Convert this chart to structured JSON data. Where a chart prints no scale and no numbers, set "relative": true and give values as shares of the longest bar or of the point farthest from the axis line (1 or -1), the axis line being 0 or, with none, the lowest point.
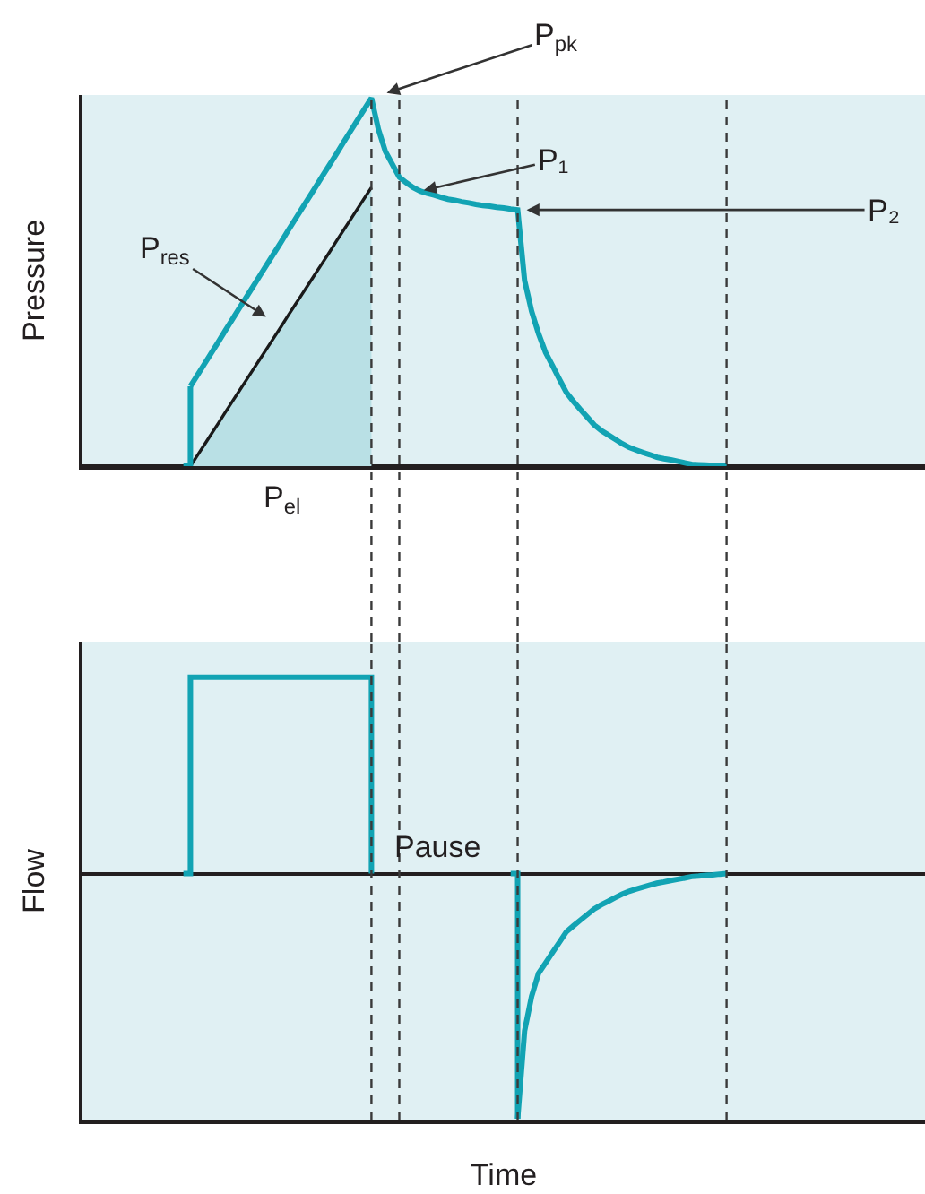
{
  "chart_data": [
    {
      "type": "line",
      "relative": true,
      "ylabel": "Pressure",
      "grid": "x",
      "marker": "none",
      "categories": [
        null,
        null,
        null,
        null,
        null,
        null,
        null,
        null,
        null,
        null,
        null,
        null,
        null,
        null,
        null,
        null,
        null,
        null,
        null,
        null,
        null,
        null,
        null,
        null,
        null,
        null,
        null,
        null,
        null,
        null,
        null,
        null,
        null,
        null,
        null,
        null,
        null,
        null,
        null,
        null,
        null,
        null,
        null,
        null,
        null,
        null,
        null,
        null,
        null,
        null,
        null,
        null,
        null,
        null,
        null,
        null,
        null,
        null,
        null,
        null,
        null,
        null,
        null,
        null,
        null,
        null,
        null,
        null,
        null,
        null,
        null,
        null,
        null,
        null,
        null,
        null,
        null,
        null,
        null,
        null,
        null,
        null,
        null,
        null,
        null,
        null,
        null,
        null,
        null,
        null,
        null,
        null,
        null,
        null,
        null,
        null,
        null,
        null,
        null,
        null,
        null,
        null,
        null,
        null,
        null,
        null,
        null,
        null,
        null,
        null,
        null,
        null,
        null,
        null,
        null,
        null,
        null,
        null,
        null,
        null,
        null
      ],
      "series": [
        {
          "type": "area",
          "color": "#b9e0e5",
          "values": [
            null,
            null,
            null,
            null,
            null,
            null,
            null,
            null,
            null,
            null,
            null,
            null,
            null,
            null,
            null,
            0,
            0.029,
            0.058,
            0.087,
            0.116,
            0.146,
            0.175,
            0.204,
            0.233,
            0.262,
            0.291,
            0.32,
            0.349,
            0.378,
            0.408,
            0.437,
            0.466,
            0.495,
            0.524,
            0.553,
            0.582,
            0.612,
            0.641,
            0.67,
            0.699,
            0.728,
            0.757,
            null,
            null,
            null,
            null,
            null,
            null,
            null,
            null,
            null,
            null,
            null,
            null,
            null,
            null,
            null,
            null,
            null,
            null,
            null,
            null,
            null,
            null,
            null,
            null,
            null,
            null,
            null,
            null,
            null,
            null,
            null,
            null,
            null,
            null,
            null,
            null,
            null,
            null,
            null,
            null,
            null,
            null,
            null,
            null,
            null,
            null,
            null,
            null,
            null,
            null,
            null,
            null,
            null,
            null,
            null,
            null,
            null,
            null,
            null,
            null,
            null,
            null,
            null,
            null,
            null,
            null,
            null,
            null,
            null,
            null,
            null,
            null,
            null,
            null,
            null,
            null,
            null,
            null,
            null
          ]
        },
        {
          "type": "step",
          "color": "#12a3b3",
          "values": [
            null,
            null,
            null,
            null,
            null,
            null,
            null,
            null,
            null,
            null,
            null,
            null,
            null,
            null,
            0,
            0.217,
            null,
            null,
            null,
            null,
            null,
            null,
            null,
            null,
            null,
            null,
            null,
            null,
            null,
            null,
            null,
            null,
            null,
            null,
            null,
            null,
            null,
            null,
            null,
            null,
            null,
            null,
            null,
            null,
            null,
            null,
            null,
            null,
            null,
            null,
            null,
            null,
            null,
            null,
            null,
            null,
            null,
            null,
            null,
            null,
            null,
            null,
            null,
            null,
            null,
            null,
            null,
            null,
            null,
            null,
            null,
            null,
            null,
            null,
            null,
            null,
            null,
            null,
            null,
            null,
            null,
            null,
            null,
            null,
            null,
            null,
            null,
            null,
            null,
            null,
            null,
            null,
            null,
            null,
            null,
            null,
            null,
            null,
            null,
            null,
            null,
            null,
            null,
            null,
            null,
            null,
            null,
            null,
            null,
            null,
            null,
            null,
            null,
            null,
            null,
            null,
            null,
            null,
            null,
            null,
            null
          ]
        },
        {
          "color": "#12a3b3",
          "values": [
            null,
            null,
            null,
            null,
            null,
            null,
            null,
            null,
            null,
            null,
            null,
            null,
            null,
            null,
            null,
            0.217,
            0.247,
            0.277,
            0.307,
            0.337,
            0.368,
            0.398,
            0.428,
            0.458,
            0.488,
            0.518,
            0.548,
            0.578,
            0.608,
            0.639,
            0.669,
            0.699,
            0.729,
            0.759,
            0.789,
            0.819,
            0.849,
            0.88,
            0.91,
            0.94,
            0.97,
            1,
            0.915,
            0.855,
            0.82,
            0.785,
            0.77,
            0.757,
            0.747,
            0.741,
            0.736,
            0.73,
            0.725,
            0.722,
            0.718,
            0.715,
            0.711,
            0.708,
            0.706,
            0.703,
            0.701,
            0.698,
            0.696,
            0.504,
            0.421,
            0.36,
            0.309,
            0.273,
            0.236,
            0.2,
            0.176,
            0.154,
            0.133,
            0.112,
            0.097,
            0.085,
            0.073,
            0.061,
            0.051,
            0.044,
            0.037,
            0.031,
            0.024,
            0.02,
            0.017,
            0.013,
            0.009,
            0.005,
            0.004,
            0.003,
            0.002,
            0.001,
            0,
            null,
            null,
            null,
            null,
            null,
            null,
            null,
            null,
            null,
            null,
            null,
            null,
            null,
            null,
            null,
            null,
            null,
            null,
            null,
            null,
            null,
            null,
            null,
            null,
            null,
            null,
            null,
            null
          ]
        }
      ],
      "annotations": [
        "P$_{pk}$",
        "P₁",
        "P₂",
        "P$_{res}$",
        "P$_{el}$"
      ]
    },
    {
      "type": "line",
      "relative": true,
      "ylabel": "Flow",
      "xlabel": "Time",
      "grid": "x",
      "marker": "none",
      "categories": [
        null,
        null,
        null,
        null,
        null,
        null,
        null,
        null,
        null,
        null,
        null,
        null,
        null,
        null,
        null,
        null,
        null,
        null,
        null,
        null,
        null,
        null,
        null,
        null,
        null,
        null,
        null,
        null,
        null,
        null,
        null,
        null,
        null,
        null,
        null,
        null,
        null,
        null,
        null,
        null,
        null,
        null,
        null,
        null,
        null,
        null,
        null,
        null,
        null,
        null,
        null,
        null,
        null,
        null,
        null,
        null,
        null,
        null,
        null,
        null,
        null,
        null,
        null,
        null,
        null,
        null,
        null,
        null,
        null,
        null,
        null,
        null,
        null,
        null,
        null,
        null,
        null,
        null,
        null,
        null,
        null,
        null,
        null,
        null,
        null,
        null,
        null,
        null,
        null,
        null,
        null,
        null,
        null,
        null,
        null,
        null,
        null,
        null,
        null,
        null,
        null,
        null,
        null,
        null,
        null,
        null,
        null,
        null,
        null,
        null,
        null,
        null,
        null,
        null,
        null,
        null,
        null,
        null,
        null,
        null,
        null
      ],
      "series": [
        {
          "type": "step",
          "color": "#12a3b3",
          "values": [
            null,
            null,
            null,
            null,
            null,
            null,
            null,
            null,
            null,
            null,
            null,
            null,
            null,
            null,
            0,
            0.8,
            0.8,
            0.8,
            0.8,
            0.8,
            0.8,
            0.8,
            0.8,
            0.8,
            0.8,
            0.8,
            0.8,
            0.8,
            0.8,
            0.8,
            0.8,
            0.8,
            0.8,
            0.8,
            0.8,
            0.8,
            0.8,
            0.8,
            0.8,
            0.8,
            0.8,
            0,
            null,
            null,
            null,
            null,
            null,
            null,
            null,
            null,
            null,
            null,
            null,
            null,
            null,
            null,
            null,
            null,
            null,
            null,
            null,
            0,
            -1,
            null,
            null,
            null,
            null,
            null,
            null,
            null,
            null,
            null,
            null,
            null,
            null,
            null,
            null,
            null,
            null,
            null,
            null,
            null,
            null,
            null,
            null,
            null,
            null,
            null,
            null,
            null,
            null,
            null,
            null,
            null,
            null,
            null,
            null,
            null,
            null,
            null,
            null,
            null,
            null,
            null,
            null,
            null,
            null,
            null,
            null,
            null,
            null,
            null,
            null,
            null,
            null,
            null,
            null,
            null,
            null,
            null,
            null
          ]
        },
        {
          "color": "#12a3b3",
          "values": [
            null,
            null,
            null,
            null,
            null,
            null,
            null,
            null,
            null,
            null,
            null,
            null,
            null,
            null,
            null,
            null,
            null,
            null,
            null,
            null,
            null,
            null,
            null,
            null,
            null,
            null,
            null,
            null,
            null,
            null,
            null,
            null,
            null,
            null,
            null,
            null,
            null,
            null,
            null,
            null,
            null,
            null,
            null,
            null,
            null,
            null,
            null,
            null,
            null,
            null,
            null,
            null,
            null,
            null,
            null,
            null,
            null,
            null,
            null,
            null,
            null,
            null,
            -1,
            -0.641,
            -0.501,
            -0.407,
            -0.365,
            -0.322,
            -0.28,
            -0.237,
            -0.213,
            -0.19,
            -0.167,
            -0.144,
            -0.127,
            -0.113,
            -0.098,
            -0.084,
            -0.072,
            -0.063,
            -0.055,
            -0.047,
            -0.039,
            -0.034,
            -0.028,
            -0.023,
            -0.018,
            -0.012,
            -0.01,
            -0.007,
            -0.005,
            -0.002,
            0,
            null,
            null,
            null,
            null,
            null,
            null,
            null,
            null,
            null,
            null,
            null,
            null,
            null,
            null,
            null,
            null,
            null,
            null,
            null,
            null,
            null,
            null,
            null,
            null,
            null,
            null,
            null,
            null
          ]
        }
      ],
      "annotations": [
        "Pause"
      ]
    }
  ]
}
